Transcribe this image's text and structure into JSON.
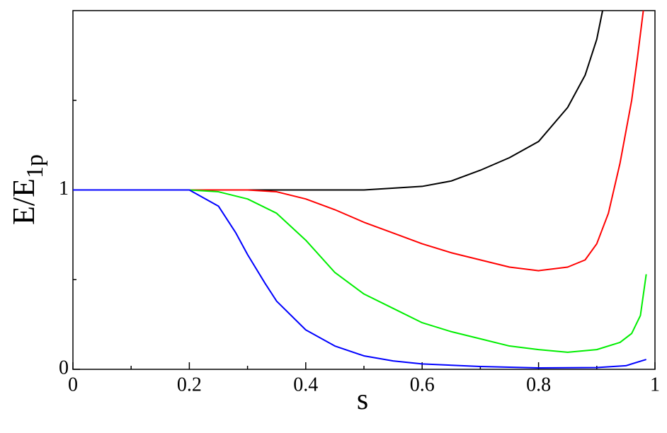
{
  "chart_data": {
    "type": "line",
    "xlabel": "s",
    "ylabel": "E/E",
    "ylabel_sub": "1p",
    "xlim": [
      0,
      1
    ],
    "ylim": [
      0,
      2
    ],
    "xticks": [
      0,
      0.2,
      0.4,
      0.6,
      0.8,
      1
    ],
    "xminor": [
      0.1,
      0.3,
      0.5,
      0.7,
      0.9
    ],
    "yticks": [
      0,
      1
    ],
    "yminor": [
      0.5,
      1.5
    ],
    "series": [
      {
        "color": "#000000",
        "x": [
          0,
          0.1,
          0.2,
          0.3,
          0.4,
          0.5,
          0.6,
          0.65,
          0.7,
          0.75,
          0.8,
          0.85,
          0.88,
          0.9,
          0.91
        ],
        "values": [
          1,
          1,
          1,
          1,
          1,
          1.0,
          1.02,
          1.05,
          1.11,
          1.18,
          1.27,
          1.46,
          1.64,
          1.84,
          2.0
        ]
      },
      {
        "color": "#ff0000",
        "x": [
          0,
          0.1,
          0.2,
          0.3,
          0.35,
          0.4,
          0.45,
          0.5,
          0.55,
          0.6,
          0.65,
          0.7,
          0.75,
          0.8,
          0.85,
          0.88,
          0.9,
          0.92,
          0.94,
          0.96,
          0.97,
          0.98
        ],
        "values": [
          1,
          1,
          1,
          1,
          0.99,
          0.95,
          0.89,
          0.82,
          0.76,
          0.7,
          0.65,
          0.61,
          0.57,
          0.55,
          0.57,
          0.61,
          0.7,
          0.87,
          1.15,
          1.5,
          1.74,
          2.0
        ]
      },
      {
        "color": "#00ee00",
        "x": [
          0,
          0.1,
          0.2,
          0.25,
          0.3,
          0.35,
          0.4,
          0.45,
          0.5,
          0.55,
          0.6,
          0.65,
          0.7,
          0.75,
          0.8,
          0.85,
          0.9,
          0.94,
          0.96,
          0.975,
          0.985
        ],
        "values": [
          1,
          1,
          1,
          0.99,
          0.95,
          0.87,
          0.72,
          0.54,
          0.42,
          0.34,
          0.26,
          0.21,
          0.17,
          0.13,
          0.11,
          0.095,
          0.11,
          0.15,
          0.2,
          0.3,
          0.53
        ]
      },
      {
        "color": "#0000ff",
        "x": [
          0,
          0.1,
          0.18,
          0.2,
          0.25,
          0.28,
          0.3,
          0.33,
          0.35,
          0.4,
          0.45,
          0.5,
          0.55,
          0.6,
          0.7,
          0.8,
          0.9,
          0.95,
          0.985
        ],
        "values": [
          1,
          1,
          1,
          1.0,
          0.91,
          0.76,
          0.64,
          0.48,
          0.38,
          0.22,
          0.13,
          0.075,
          0.047,
          0.03,
          0.016,
          0.008,
          0.01,
          0.02,
          0.055
        ]
      }
    ]
  }
}
